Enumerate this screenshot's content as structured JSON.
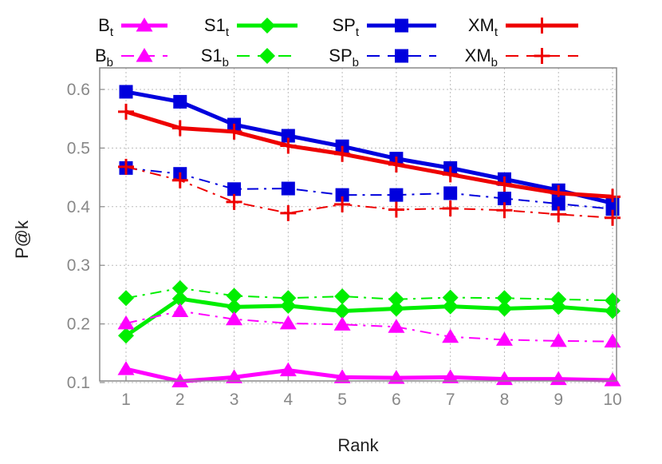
{
  "chart_data": {
    "type": "line",
    "xlabel": "Rank",
    "ylabel": "P@k",
    "x": [
      1,
      2,
      3,
      4,
      5,
      6,
      7,
      8,
      9,
      10
    ],
    "xticks": [
      "1",
      "2",
      "3",
      "4",
      "5",
      "6",
      "7",
      "8",
      "9",
      "10"
    ],
    "ylim": [
      0.1,
      0.6
    ],
    "yticks": [
      "0.1",
      "0.2",
      "0.3",
      "0.4",
      "0.5",
      "0.6"
    ],
    "grid": true,
    "legend_position": "top",
    "series": [
      {
        "name": "B",
        "sub": "t",
        "color": "#ff00ff",
        "marker": "triangle",
        "dash": "solid",
        "values": [
          0.123,
          0.102,
          0.109,
          0.121,
          0.109,
          0.108,
          0.109,
          0.106,
          0.106,
          0.104
        ]
      },
      {
        "name": "S1",
        "sub": "t",
        "color": "#00ee00",
        "marker": "diamond",
        "dash": "solid",
        "values": [
          0.18,
          0.243,
          0.229,
          0.231,
          0.222,
          0.226,
          0.23,
          0.226,
          0.229,
          0.222
        ]
      },
      {
        "name": "SP",
        "sub": "t",
        "color": "#0000dd",
        "marker": "square",
        "dash": "solid",
        "values": [
          0.596,
          0.579,
          0.54,
          0.521,
          0.503,
          0.482,
          0.466,
          0.447,
          0.428,
          0.406
        ]
      },
      {
        "name": "XM",
        "sub": "t",
        "color": "#ee0000",
        "marker": "plus",
        "dash": "solid",
        "values": [
          0.562,
          0.534,
          0.528,
          0.504,
          0.49,
          0.472,
          0.455,
          0.438,
          0.423,
          0.417
        ]
      },
      {
        "name": "B",
        "sub": "b",
        "color": "#ff00ff",
        "marker": "triangle",
        "dash": "dashed",
        "values": [
          0.201,
          0.222,
          0.208,
          0.201,
          0.199,
          0.195,
          0.178,
          0.173,
          0.171,
          0.17
        ]
      },
      {
        "name": "S1",
        "sub": "b",
        "color": "#00ee00",
        "marker": "diamond",
        "dash": "dashed",
        "values": [
          0.244,
          0.261,
          0.248,
          0.244,
          0.247,
          0.242,
          0.245,
          0.244,
          0.242,
          0.24
        ]
      },
      {
        "name": "SP",
        "sub": "b",
        "color": "#0000dd",
        "marker": "square",
        "dash": "dashed",
        "values": [
          0.466,
          0.456,
          0.43,
          0.431,
          0.42,
          0.42,
          0.423,
          0.414,
          0.405,
          0.396
        ]
      },
      {
        "name": "XM",
        "sub": "b",
        "color": "#ee0000",
        "marker": "plus",
        "dash": "dashed",
        "values": [
          0.468,
          0.445,
          0.408,
          0.389,
          0.404,
          0.395,
          0.397,
          0.394,
          0.387,
          0.381
        ]
      }
    ]
  }
}
